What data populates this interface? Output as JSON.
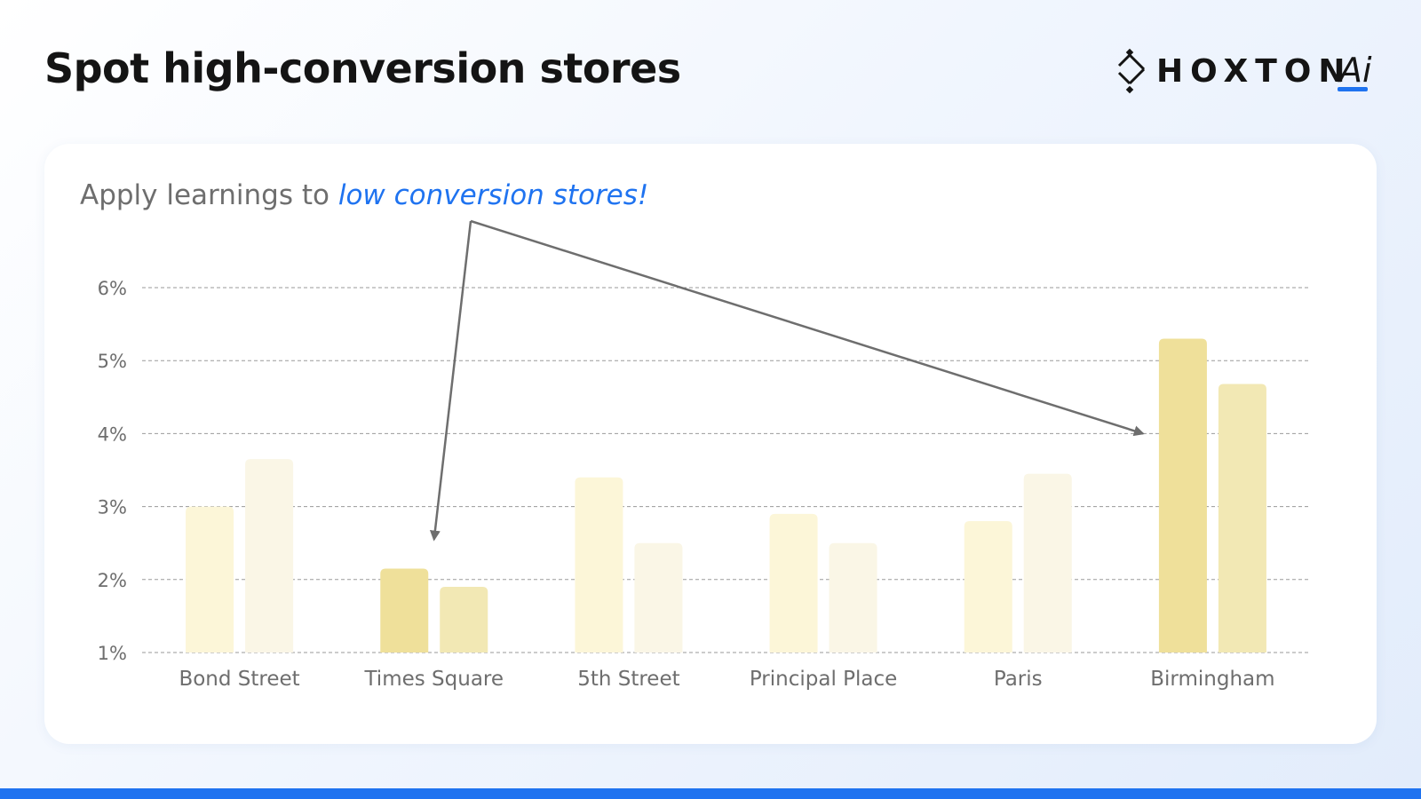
{
  "title": "Spot high-conversion stores",
  "brand": {
    "logo_text": "HOXTON",
    "logo_suffix": "Ai"
  },
  "subtitle": {
    "prefix": "Apply learnings to ",
    "highlight": "low conversion stores!"
  },
  "colors": {
    "accent": "#1f73f0",
    "highlight_series_a": "#efe09a",
    "highlight_series_b": "#f2e8b4",
    "muted_series_a": "#fcf6d8",
    "muted_series_b": "#faf6e6",
    "arrow": "#6e6e6e"
  },
  "chart_data": {
    "type": "bar",
    "categories": [
      "Bond Street",
      "Times Square",
      "5th Street",
      "Principal Place",
      "Paris",
      "Birmingham"
    ],
    "series": [
      {
        "values": [
          3.0,
          2.15,
          3.4,
          2.9,
          2.8,
          5.3
        ]
      },
      {
        "values": [
          3.65,
          1.9,
          2.5,
          2.5,
          3.45,
          4.68
        ]
      }
    ],
    "highlighted_categories": [
      "Times Square",
      "Birmingham"
    ],
    "ylim": [
      1,
      6
    ],
    "yticks": [
      1,
      2,
      3,
      4,
      5,
      6
    ],
    "ytick_labels": [
      "1%",
      "2%",
      "3%",
      "4%",
      "5%",
      "6%"
    ],
    "grid": "dashed horizontal",
    "annotations": [
      {
        "from": "subtitle",
        "to_category": "Times Square",
        "to_value": 2.55
      },
      {
        "from": "subtitle",
        "to_category": "Birmingham",
        "to_value": 4.0
      }
    ]
  }
}
